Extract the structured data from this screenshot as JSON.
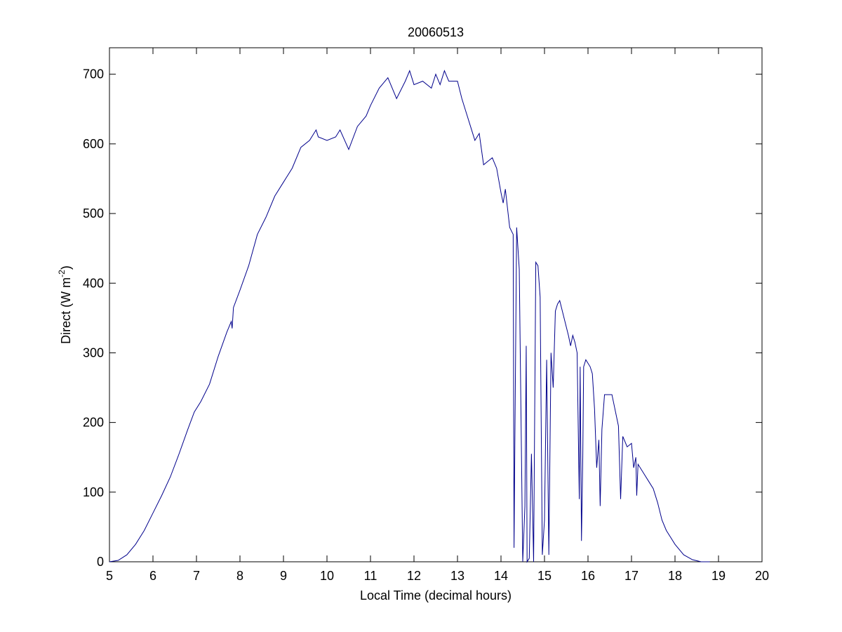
{
  "chart_data": {
    "type": "line",
    "title": "20060513",
    "xlabel": "Local Time (decimal hours)",
    "ylabel_parts": [
      "Direct (W m",
      "-2",
      ")"
    ],
    "xlim": [
      5,
      20
    ],
    "ylim": [
      0,
      738
    ],
    "xticks": [
      5,
      6,
      7,
      8,
      9,
      10,
      11,
      12,
      13,
      14,
      15,
      16,
      17,
      18,
      19,
      20
    ],
    "yticks": [
      0,
      100,
      200,
      300,
      400,
      500,
      600,
      700
    ],
    "grid": false,
    "series": [
      {
        "color": "#00008b",
        "x": [
          5.0,
          5.2,
          5.4,
          5.6,
          5.8,
          6.0,
          6.2,
          6.4,
          6.6,
          6.8,
          6.95,
          7.1,
          7.3,
          7.5,
          7.7,
          7.8,
          7.82,
          7.85,
          8.0,
          8.2,
          8.4,
          8.6,
          8.8,
          9.0,
          9.2,
          9.4,
          9.6,
          9.75,
          9.8,
          10.0,
          10.2,
          10.3,
          10.5,
          10.7,
          10.9,
          11.0,
          11.2,
          11.4,
          11.5,
          11.6,
          11.8,
          11.9,
          12.0,
          12.2,
          12.4,
          12.5,
          12.6,
          12.7,
          12.8,
          13.0,
          13.1,
          13.2,
          13.3,
          13.4,
          13.5,
          13.6,
          13.7,
          13.8,
          13.9,
          14.0,
          14.05,
          14.1,
          14.2,
          14.28,
          14.3,
          14.32,
          14.36,
          14.42,
          14.5,
          14.55,
          14.58,
          14.6,
          14.65,
          14.7,
          14.75,
          14.8,
          14.85,
          14.9,
          14.95,
          15.0,
          15.05,
          15.1,
          15.15,
          15.2,
          15.25,
          15.3,
          15.35,
          15.45,
          15.55,
          15.6,
          15.65,
          15.7,
          15.75,
          15.8,
          15.82,
          15.85,
          15.88,
          15.9,
          15.95,
          16.05,
          16.1,
          16.15,
          16.2,
          16.25,
          16.28,
          16.32,
          16.38,
          16.45,
          16.55,
          16.6,
          16.7,
          16.75,
          16.8,
          16.9,
          17.0,
          17.05,
          17.1,
          17.12,
          17.15,
          17.3,
          17.4,
          17.5,
          17.6,
          17.7,
          17.8,
          17.9,
          18.0,
          18.2,
          18.4,
          18.6,
          18.8
        ],
        "values": [
          0,
          2,
          10,
          25,
          45,
          70,
          95,
          122,
          155,
          190,
          215,
          230,
          255,
          295,
          330,
          345,
          335,
          365,
          390,
          425,
          470,
          495,
          525,
          545,
          565,
          595,
          605,
          620,
          610,
          605,
          610,
          620,
          592,
          625,
          640,
          655,
          680,
          695,
          680,
          665,
          690,
          705,
          685,
          690,
          680,
          700,
          685,
          705,
          690,
          690,
          665,
          645,
          625,
          605,
          615,
          570,
          575,
          580,
          565,
          530,
          515,
          535,
          480,
          470,
          20,
          180,
          480,
          420,
          0,
          80,
          310,
          0,
          5,
          155,
          0,
          430,
          425,
          380,
          10,
          60,
          290,
          10,
          300,
          250,
          360,
          370,
          375,
          350,
          325,
          310,
          325,
          315,
          300,
          90,
          280,
          30,
          150,
          280,
          290,
          280,
          270,
          220,
          135,
          175,
          80,
          190,
          240,
          240,
          240,
          225,
          195,
          90,
          180,
          165,
          170,
          135,
          150,
          95,
          140,
          125,
          115,
          105,
          85,
          60,
          45,
          35,
          25,
          10,
          3,
          0,
          0
        ]
      }
    ]
  }
}
